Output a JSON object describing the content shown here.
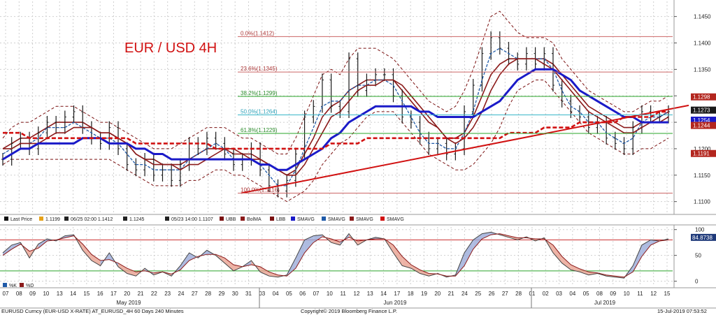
{
  "colors": {
    "price": "#1a1a1a",
    "smavg_fast": "#1f5aa8",
    "smavg_mid": "#8b1a1a",
    "smavg_slow": "#1a1ac8",
    "smavg_long": "#d11111",
    "bollinger": "#7a1010",
    "fib_line": "#c66",
    "fib_green": "#2aa52a",
    "tag_1298": "#b3261e",
    "tag_1273": "#1a1a1a",
    "tag_1254": "#1a1ac8",
    "tag_1244": "#b3261e",
    "tag_1191": "#b3261e",
    "tag_osc": "#1f3a7a",
    "stoch_k": "#444444",
    "stoch_d": "#8b1a1a",
    "stoch_fill_up": "#9aaad8",
    "stoch_fill_down": "#e8a090"
  },
  "chart_data": [
    {
      "type": "line",
      "title": "EUR / USD 4H",
      "ylim": [
        1.1085,
        1.1468
      ],
      "y_ticks": [
        "1.1450",
        "1.1400",
        "1.1350",
        "1.1300",
        "1.1250",
        "1.1200",
        "1.1150",
        "1.1100"
      ],
      "fib_levels": [
        {
          "label": "0.0%(1.1412)",
          "value": 1.1412
        },
        {
          "label": "23.6%(1.1345)",
          "value": 1.1345
        },
        {
          "label": "38.2%(1.1299)",
          "value": 1.1299
        },
        {
          "label": "50.0%(1.1264)",
          "value": 1.1264
        },
        {
          "label": "61.8%(1.1229)",
          "value": 1.1229
        },
        {
          "label": "100.0%(1.1116)",
          "value": 1.1116
        }
      ],
      "price_tags": [
        {
          "label": "1.1298",
          "value": 1.1298
        },
        {
          "label": "1.1273",
          "value": 1.1273
        },
        {
          "label": "1.1254",
          "value": 1.1254
        },
        {
          "label": "1.1244",
          "value": 1.1244
        },
        {
          "label": "1.1191",
          "value": 1.1191
        }
      ],
      "series": [
        {
          "name": "Last Price",
          "values": [
            1.118,
            1.121,
            1.122,
            1.12,
            1.123,
            1.125,
            1.124,
            1.126,
            1.127,
            1.124,
            1.122,
            1.121,
            1.124,
            1.12,
            1.117,
            1.116,
            1.118,
            1.115,
            1.116,
            1.114,
            1.117,
            1.121,
            1.12,
            1.122,
            1.121,
            1.119,
            1.117,
            1.118,
            1.12,
            1.116,
            1.113,
            1.112,
            1.114,
            1.119,
            1.126,
            1.128,
            1.133,
            1.128,
            1.127,
            1.137,
            1.131,
            1.133,
            1.134,
            1.134,
            1.13,
            1.126,
            1.125,
            1.122,
            1.12,
            1.121,
            1.119,
            1.12,
            1.127,
            1.132,
            1.138,
            1.141,
            1.139,
            1.137,
            1.136,
            1.138,
            1.136,
            1.138,
            1.132,
            1.129,
            1.127,
            1.126,
            1.124,
            1.125,
            1.122,
            1.121,
            1.12,
            1.124,
            1.127,
            1.126,
            1.126,
            1.127
          ]
        },
        {
          "name": "SMAVG",
          "values": [
            1.119,
            1.12,
            1.121,
            1.121,
            1.122,
            1.124,
            1.124,
            1.124,
            1.125,
            1.124,
            1.123,
            1.122,
            1.122,
            1.121,
            1.119,
            1.117,
            1.117,
            1.116,
            1.116,
            1.116,
            1.116,
            1.118,
            1.119,
            1.12,
            1.121,
            1.12,
            1.118,
            1.118,
            1.118,
            1.117,
            1.115,
            1.113,
            1.113,
            1.116,
            1.12,
            1.124,
            1.128,
            1.129,
            1.129,
            1.131,
            1.132,
            1.132,
            1.133,
            1.133,
            1.132,
            1.129,
            1.126,
            1.123,
            1.121,
            1.121,
            1.12,
            1.12,
            1.123,
            1.127,
            1.133,
            1.138,
            1.139,
            1.138,
            1.137,
            1.137,
            1.137,
            1.137,
            1.135,
            1.131,
            1.128,
            1.127,
            1.125,
            1.125,
            1.123,
            1.122,
            1.121,
            1.122,
            1.125,
            1.126,
            1.126,
            1.127
          ]
        },
        {
          "name": "SMAVG",
          "values": [
            1.12,
            1.12,
            1.121,
            1.121,
            1.121,
            1.122,
            1.123,
            1.123,
            1.124,
            1.124,
            1.124,
            1.123,
            1.123,
            1.122,
            1.121,
            1.119,
            1.118,
            1.117,
            1.117,
            1.117,
            1.116,
            1.117,
            1.117,
            1.118,
            1.119,
            1.12,
            1.12,
            1.119,
            1.118,
            1.118,
            1.117,
            1.116,
            1.115,
            1.115,
            1.117,
            1.12,
            1.123,
            1.126,
            1.127,
            1.129,
            1.131,
            1.132,
            1.132,
            1.133,
            1.133,
            1.132,
            1.13,
            1.128,
            1.126,
            1.124,
            1.122,
            1.121,
            1.122,
            1.124,
            1.127,
            1.131,
            1.134,
            1.136,
            1.137,
            1.137,
            1.137,
            1.136,
            1.135,
            1.133,
            1.131,
            1.129,
            1.127,
            1.126,
            1.125,
            1.124,
            1.123,
            1.123,
            1.124,
            1.125,
            1.125,
            1.126
          ]
        },
        {
          "name": "SMAVG",
          "values": [
            1.118,
            1.119,
            1.12,
            1.12,
            1.121,
            1.121,
            1.121,
            1.121,
            1.121,
            1.122,
            1.122,
            1.122,
            1.121,
            1.121,
            1.121,
            1.12,
            1.12,
            1.119,
            1.119,
            1.118,
            1.118,
            1.118,
            1.118,
            1.118,
            1.118,
            1.118,
            1.118,
            1.118,
            1.118,
            1.117,
            1.117,
            1.116,
            1.116,
            1.117,
            1.118,
            1.119,
            1.12,
            1.122,
            1.123,
            1.125,
            1.126,
            1.127,
            1.128,
            1.128,
            1.128,
            1.128,
            1.128,
            1.127,
            1.127,
            1.126,
            1.126,
            1.126,
            1.126,
            1.126,
            1.127,
            1.128,
            1.129,
            1.131,
            1.133,
            1.134,
            1.135,
            1.135,
            1.135,
            1.134,
            1.133,
            1.131,
            1.13,
            1.129,
            1.128,
            1.127,
            1.126,
            1.126,
            1.125,
            1.125,
            1.125,
            1.125
          ]
        },
        {
          "name": "SMAVG",
          "values": [
            1.123,
            1.123,
            1.123,
            1.122,
            1.122,
            1.122,
            1.122,
            1.122,
            1.122,
            1.122,
            1.122,
            1.122,
            1.122,
            1.122,
            1.122,
            1.121,
            1.121,
            1.121,
            1.121,
            1.121,
            1.121,
            1.121,
            1.121,
            1.121,
            1.12,
            1.12,
            1.12,
            1.12,
            1.12,
            1.12,
            1.12,
            1.12,
            1.12,
            1.12,
            1.12,
            1.12,
            1.12,
            1.121,
            1.121,
            1.121,
            1.121,
            1.122,
            1.122,
            1.122,
            1.122,
            1.122,
            1.122,
            1.122,
            1.122,
            1.122,
            1.122,
            1.122,
            1.122,
            1.122,
            1.122,
            1.122,
            1.122,
            1.123,
            1.123,
            1.123,
            1.123,
            1.124,
            1.124,
            1.124,
            1.124,
            1.125,
            1.125,
            1.125,
            1.125,
            1.125,
            1.126,
            1.126,
            1.126,
            1.126,
            1.127,
            1.127
          ]
        },
        {
          "name": "UBB",
          "values": [
            1.122,
            1.124,
            1.125,
            1.125,
            1.126,
            1.127,
            1.128,
            1.128,
            1.128,
            1.127,
            1.126,
            1.125,
            1.125,
            1.124,
            1.123,
            1.122,
            1.121,
            1.12,
            1.12,
            1.12,
            1.121,
            1.122,
            1.123,
            1.124,
            1.124,
            1.124,
            1.123,
            1.122,
            1.122,
            1.121,
            1.12,
            1.119,
            1.119,
            1.122,
            1.126,
            1.13,
            1.134,
            1.135,
            1.134,
            1.137,
            1.139,
            1.139,
            1.139,
            1.138,
            1.137,
            1.135,
            1.133,
            1.131,
            1.129,
            1.128,
            1.127,
            1.128,
            1.131,
            1.135,
            1.14,
            1.145,
            1.146,
            1.144,
            1.142,
            1.141,
            1.141,
            1.141,
            1.14,
            1.137,
            1.135,
            1.133,
            1.131,
            1.13,
            1.129,
            1.128,
            1.127,
            1.127,
            1.128,
            1.129,
            1.129,
            1.13
          ]
        },
        {
          "name": "BolMA",
          "values": [
            1.12,
            1.121,
            1.122,
            1.122,
            1.123,
            1.124,
            1.125,
            1.125,
            1.125,
            1.125,
            1.124,
            1.123,
            1.123,
            1.122,
            1.121,
            1.119,
            1.118,
            1.118,
            1.117,
            1.117,
            1.117,
            1.118,
            1.119,
            1.12,
            1.12,
            1.12,
            1.119,
            1.119,
            1.119,
            1.118,
            1.117,
            1.116,
            1.115,
            1.116,
            1.119,
            1.122,
            1.126,
            1.128,
            1.129,
            1.131,
            1.132,
            1.133,
            1.133,
            1.133,
            1.133,
            1.131,
            1.129,
            1.127,
            1.125,
            1.124,
            1.122,
            1.122,
            1.123,
            1.126,
            1.13,
            1.134,
            1.136,
            1.137,
            1.137,
            1.137,
            1.137,
            1.137,
            1.136,
            1.134,
            1.132,
            1.13,
            1.128,
            1.127,
            1.126,
            1.125,
            1.124,
            1.124,
            1.125,
            1.125,
            1.126,
            1.127
          ]
        },
        {
          "name": "LBB",
          "values": [
            1.117,
            1.118,
            1.118,
            1.118,
            1.118,
            1.118,
            1.118,
            1.118,
            1.118,
            1.118,
            1.118,
            1.118,
            1.118,
            1.117,
            1.116,
            1.115,
            1.114,
            1.113,
            1.113,
            1.113,
            1.113,
            1.114,
            1.114,
            1.115,
            1.116,
            1.116,
            1.115,
            1.115,
            1.114,
            1.113,
            1.112,
            1.111,
            1.11,
            1.111,
            1.112,
            1.114,
            1.117,
            1.119,
            1.121,
            1.122,
            1.124,
            1.126,
            1.127,
            1.127,
            1.127,
            1.125,
            1.123,
            1.121,
            1.119,
            1.118,
            1.117,
            1.116,
            1.116,
            1.117,
            1.119,
            1.121,
            1.124,
            1.128,
            1.131,
            1.132,
            1.133,
            1.133,
            1.131,
            1.129,
            1.127,
            1.125,
            1.123,
            1.122,
            1.121,
            1.12,
            1.119,
            1.119,
            1.12,
            1.12,
            1.121,
            1.122
          ]
        }
      ]
    },
    {
      "type": "line",
      "ylim": [
        -10,
        105
      ],
      "y_ticks": [
        "100",
        "50",
        "0"
      ],
      "price_tags": [
        {
          "label": "84.8738",
          "value": 84.8738
        }
      ],
      "series": [
        {
          "name": "%K",
          "values": [
            55,
            70,
            75,
            45,
            72,
            82,
            78,
            88,
            90,
            60,
            40,
            30,
            55,
            28,
            15,
            10,
            25,
            12,
            18,
            10,
            30,
            55,
            45,
            60,
            50,
            35,
            20,
            28,
            40,
            18,
            10,
            8,
            12,
            45,
            80,
            88,
            90,
            75,
            70,
            92,
            70,
            80,
            85,
            82,
            55,
            30,
            25,
            15,
            10,
            15,
            8,
            12,
            55,
            80,
            92,
            95,
            90,
            85,
            80,
            86,
            78,
            84,
            55,
            35,
            22,
            18,
            12,
            15,
            10,
            8,
            6,
            30,
            70,
            80,
            78,
            82
          ]
        },
        {
          "name": "%D",
          "values": [
            50,
            62,
            72,
            58,
            64,
            78,
            80,
            84,
            88,
            72,
            52,
            40,
            42,
            35,
            25,
            18,
            20,
            16,
            18,
            14,
            22,
            40,
            48,
            52,
            52,
            45,
            32,
            28,
            32,
            28,
            18,
            12,
            10,
            25,
            55,
            75,
            86,
            82,
            76,
            85,
            78,
            80,
            82,
            82,
            70,
            48,
            32,
            22,
            15,
            14,
            10,
            10,
            30,
            62,
            82,
            90,
            92,
            88,
            84,
            84,
            82,
            82,
            70,
            48,
            32,
            24,
            18,
            16,
            12,
            10,
            8,
            18,
            48,
            70,
            78,
            80
          ]
        }
      ]
    }
  ],
  "header": {
    "x_axis_days": [
      "07",
      "08",
      "09",
      "10",
      "13",
      "14",
      "15",
      "16",
      "17",
      "20",
      "21",
      "22",
      "23",
      "24",
      "27",
      "28",
      "29",
      "30",
      "31",
      "03",
      "04",
      "05",
      "06",
      "07",
      "10",
      "11",
      "12",
      "13",
      "14",
      "17",
      "18",
      "19",
      "20",
      "21",
      "24",
      "25",
      "26",
      "27",
      "28",
      "01",
      "02",
      "03",
      "04",
      "05",
      "08",
      "09",
      "10",
      "11",
      "12",
      "15"
    ],
    "x_axis_months": [
      {
        "label": "May 2019"
      },
      {
        "label": "Jun 2019"
      },
      {
        "label": "Jul 2019"
      }
    ]
  },
  "legend_main": [
    {
      "label": "Last Price",
      "icon": "square-icon"
    },
    {
      "label": "1.1199",
      "icon": "square-icon"
    },
    {
      "label": "06/25 02:00 1.1412",
      "icon": "up-arrow-icon"
    },
    {
      "label": "1.1245",
      "icon": "plus-icon"
    },
    {
      "label": "05/23 14:00 1.1107",
      "icon": "down-arrow-icon"
    },
    {
      "label": "UBB",
      "icon": "square-icon"
    },
    {
      "label": "BolMA",
      "icon": "square-icon"
    },
    {
      "label": "LBB",
      "icon": "square-icon"
    },
    {
      "label": "SMAVG",
      "icon": "square-icon"
    },
    {
      "label": "SMAVG",
      "icon": "square-icon"
    },
    {
      "label": "SMAVG",
      "icon": "square-icon"
    },
    {
      "label": "SMAVG",
      "icon": "square-icon"
    }
  ],
  "legend_osc": [
    {
      "label": "%K"
    },
    {
      "label": "%D"
    }
  ],
  "footer": {
    "left": "EURUSD Curncy (EUR-USD X-RATE) AT_EURUSD_4H 60 Days 240 Minutes",
    "center": "Copyright© 2019 Bloomberg Finance L.P.",
    "right": "15-Jul-2019 07:53:52"
  }
}
